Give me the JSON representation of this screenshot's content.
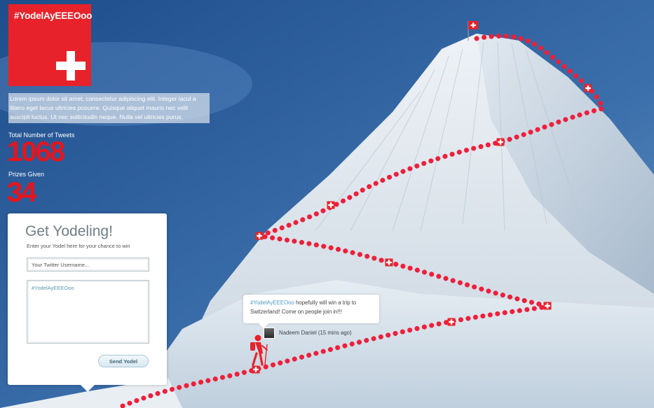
{
  "brand": {
    "hashtag_logo": "#YodelAyEEEOoo",
    "accent_color": "#e8222a"
  },
  "intro_text": "Lorem ipsum dolor sit amet, consectetur adipiscing elit. Integer iacul a libero eget lacus ultricies posuere. Quisque aliquet mauris nec velit suscipit luctus. Ut nec sollicitudin neque. Nulla vel ultricies purus.",
  "stats": {
    "tweets_label": "Total Number of Tweets",
    "tweets_value": "1068",
    "prizes_label": "Prizes Given",
    "prizes_value": "34"
  },
  "form": {
    "title": "Get Yodeling!",
    "subtitle": "Enter your Yodel here for your chance to win",
    "username_placeholder": "Your Twitter Username...",
    "message_value": "#YodelAyEEEOoo",
    "send_label": "Send Yodel"
  },
  "tweet": {
    "hashtag": "#YodelAyEEEOoo",
    "text": " hopefully will win a trip to Switzerland! Come on people join in!!!",
    "author": "Nadeem Daniel",
    "time": "(15 mins ago)"
  },
  "icons": [
    "swiss-flag-icon",
    "hiker-icon",
    "checkpoint-cross-icon"
  ]
}
